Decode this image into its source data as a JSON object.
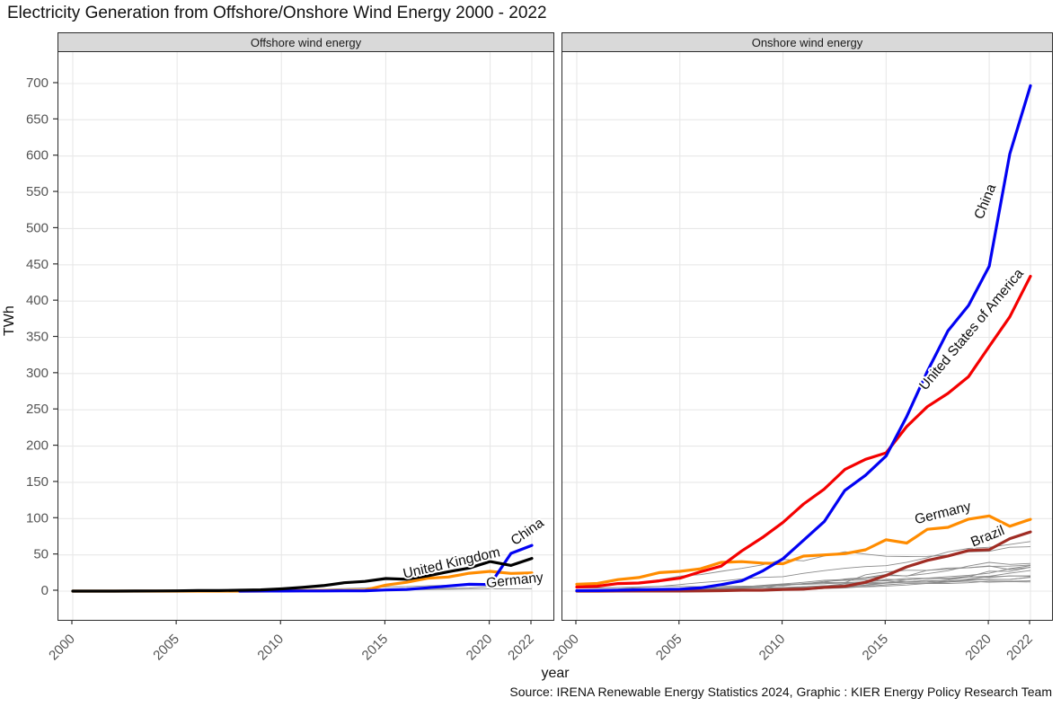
{
  "title": "Electricity Generation from Offshore/Onshore Wind Energy 2000 - 2022",
  "source": "Source: IRENA Renewable Energy Statistics 2024, Graphic : KIER Energy Policy Research Team",
  "axes": {
    "y_label": "TWh",
    "x_label": "year",
    "ylim": [
      0,
      700
    ],
    "y_ticks": [
      0,
      50,
      100,
      150,
      200,
      250,
      300,
      350,
      400,
      450,
      500,
      550,
      600,
      650,
      700
    ],
    "x_ticks": [
      2000,
      2005,
      2010,
      2015,
      2020,
      2022
    ],
    "years": [
      2000,
      2001,
      2002,
      2003,
      2004,
      2005,
      2006,
      2007,
      2008,
      2009,
      2010,
      2011,
      2012,
      2013,
      2014,
      2015,
      2016,
      2017,
      2018,
      2019,
      2020,
      2021,
      2022
    ]
  },
  "colors": {
    "china": "#0202f2",
    "united_states": "#f40000",
    "germany": "#ff8c00",
    "united_kingdom": "#000000",
    "brazil": "#a02c24",
    "other_countries": "#8a8a8a",
    "grid": "#e8e8e8",
    "strip_bg": "#d9d9d9",
    "axis_text": "#555555"
  },
  "chart_data": [
    {
      "type": "line",
      "title": "Offshore wind energy",
      "series": [
        {
          "name": "Germany",
          "color": "#ff8c00",
          "values": [
            0,
            0,
            0,
            0,
            0,
            0,
            0,
            0,
            0,
            0.05,
            0.2,
            0.6,
            0.7,
            0.9,
            1.4,
            8.3,
            12.1,
            17.7,
            19.5,
            24.7,
            27.3,
            24.4,
            25.1
          ]
        },
        {
          "name": "China",
          "color": "#0202f2",
          "values": [
            null,
            null,
            null,
            null,
            null,
            null,
            null,
            null,
            0,
            0.1,
            0.1,
            0.2,
            0.3,
            0.4,
            0.5,
            1.6,
            2.4,
            4.6,
            7.1,
            9.4,
            9,
            52,
            63
          ]
        },
        {
          "name": "United Kingdom",
          "color": "#000000",
          "values": [
            0,
            0,
            0,
            0.1,
            0.2,
            0.4,
            0.7,
            0.8,
            1.3,
            1.7,
            3.1,
            5.1,
            7.6,
            11.5,
            13.4,
            17.4,
            16.4,
            20.9,
            26.7,
            31.9,
            40.7,
            35.4,
            45.1
          ]
        }
      ],
      "others": [
        [
          0,
          0,
          0,
          0.3,
          0.6,
          0.7,
          0.8,
          0.8,
          0.9,
          0.9,
          1.4,
          1.8,
          2.3,
          3.5,
          4.4,
          5.8,
          6.2,
          7.3,
          7.9,
          8.4,
          8.9,
          9.3,
          9.9
        ],
        [
          0,
          0,
          0,
          0,
          0,
          0,
          0.2,
          0.4,
          0.5,
          0.5,
          0.5,
          0.6,
          0.8,
          0.8,
          0.8,
          0.9,
          1.6,
          3.5,
          3.7,
          4.2,
          6.5,
          8.2,
          12.1
        ],
        [
          0,
          0,
          0,
          0,
          0,
          0,
          0,
          0,
          0,
          0.2,
          0.4,
          0.6,
          0.9,
          1.1,
          1.4,
          1.6,
          1.8,
          2.1,
          2.4,
          2.7,
          3,
          3.2,
          3.4
        ]
      ],
      "labels": [
        {
          "text": "United Kingdom",
          "year": 2018.2,
          "value": 33,
          "rot": -13
        },
        {
          "text": "China",
          "year": 2021.9,
          "value": 77,
          "rot": -35
        },
        {
          "text": "Germany",
          "year": 2021.2,
          "value": 9,
          "rot": -6
        }
      ]
    },
    {
      "type": "line",
      "title": "Onshore wind energy",
      "series": [
        {
          "name": "Germany",
          "color": "#ff8c00",
          "values": [
            9.4,
            10.5,
            15.9,
            18.7,
            25.5,
            27.2,
            30.7,
            39.7,
            40.6,
            38.6,
            37.8,
            48.3,
            49.9,
            51.7,
            57,
            70.9,
            66.3,
            85.3,
            88,
            99.2,
            103.7,
            89.5,
            99
          ]
        },
        {
          "name": "Brazil",
          "color": "#a02c24",
          "values": [
            0,
            0,
            0.1,
            0.1,
            0.1,
            0.1,
            0.2,
            0.6,
            1.2,
            1.2,
            2.2,
            2.7,
            5.1,
            6.6,
            12.2,
            21.6,
            33.5,
            42.4,
            48.5,
            56,
            57.1,
            72.3,
            81.6
          ]
        },
        {
          "name": "United States of America",
          "color": "#f40000",
          "values": [
            5.6,
            6.7,
            10.4,
            11.2,
            14.1,
            17.8,
            26.6,
            34.5,
            55.4,
            73.9,
            94.7,
            120.2,
            140.8,
            167.8,
            181.7,
            190.7,
            227,
            254.3,
            272.7,
            295.9,
            337.5,
            378.2,
            434.3
          ]
        },
        {
          "name": "China",
          "color": "#0202f2",
          "values": [
            0.6,
            0.8,
            1.2,
            1.9,
            2.3,
            2.7,
            4.4,
            8.9,
            14.1,
            27.6,
            44.6,
            70.3,
            95.9,
            138.9,
            159.7,
            186.3,
            240.9,
            303,
            359,
            394,
            448,
            603,
            697
          ]
        }
      ],
      "others": [
        [
          1.7,
          2.1,
          2.9,
          5,
          6.5,
          9,
          11.7,
          13.9,
          16.9,
          18.9,
          19.9,
          24.5,
          28.2,
          31.5,
          33.8,
          35.1,
          39.8,
          46.1,
          54.2,
          58.9,
          60.4,
          64.3,
          68.4
        ],
        [
          4.7,
          6.9,
          9.3,
          11.9,
          15.5,
          20.7,
          22.7,
          27.2,
          31.4,
          36.2,
          43.7,
          41.8,
          48.5,
          54.3,
          51.1,
          48.1,
          47.7,
          47.9,
          49.6,
          54.2,
          54.9,
          60.5,
          61.2
        ],
        [
          0.9,
          1,
          1.3,
          1.3,
          1.7,
          2.8,
          4.2,
          4.9,
          5.8,
          7.6,
          7.2,
          10.5,
          12.2,
          16.9,
          18.6,
          22.9,
          20.7,
          28.7,
          30.2,
          32.3,
          34.7,
          29.7,
          32.8
        ],
        [
          0.1,
          0.1,
          0.3,
          0.4,
          0.6,
          1,
          2.2,
          4,
          5.7,
          7.9,
          9.9,
          12.1,
          14.9,
          16,
          17.2,
          21.4,
          20.9,
          24,
          28.1,
          34.6,
          39.7,
          36.8,
          38.1
        ],
        [
          0.3,
          0.4,
          0.5,
          0.8,
          1.4,
          1.6,
          2.5,
          3,
          3.8,
          4.5,
          8.7,
          10.2,
          11.8,
          11.6,
          22.5,
          26.5,
          28.8,
          28.6,
          31.8,
          32.2,
          34.2,
          34.5,
          35.9
        ],
        [
          0.5,
          0.5,
          0.6,
          0.7,
          0.9,
          0.9,
          1,
          1.4,
          2,
          2.5,
          3.5,
          6.1,
          7.2,
          9.9,
          11.5,
          16.3,
          15.5,
          17.6,
          16.6,
          19.8,
          27.5,
          27.1,
          33
        ],
        [
          0,
          0.1,
          0.1,
          0.1,
          0.1,
          0.1,
          0.1,
          0.4,
          0.8,
          1.5,
          2.9,
          4.7,
          5.9,
          7.6,
          8.5,
          11.7,
          15.5,
          17.9,
          19.9,
          21.7,
          24.7,
          31,
          35.1
        ],
        [
          0.2,
          0.4,
          0.6,
          0.9,
          1.2,
          1.7,
          2.2,
          2.6,
          3.9,
          5,
          5.1,
          6.1,
          7.3,
          8.3,
          10.3,
          11.5,
          12.6,
          12.8,
          15.2,
          19.5,
          20.4,
          24.6,
          28.5
        ],
        [
          0.6,
          1.2,
          1.4,
          1.5,
          1.8,
          2.3,
          3,
          4,
          4.9,
          6.5,
          9.1,
          9.9,
          13.4,
          14.9,
          15.2,
          14.8,
          17.7,
          17.7,
          17.7,
          20.2,
          18.7,
          20.9,
          20.4
        ],
        [
          0,
          0,
          0,
          0,
          0,
          0,
          0,
          0.2,
          0.3,
          0.6,
          1.2,
          1.6,
          3.6,
          4.2,
          6.4,
          8.7,
          10.4,
          10.6,
          12.4,
          16.7,
          19.7,
          20.8,
          21.1
        ],
        [
          0.8,
          0.8,
          0.9,
          1.3,
          1.9,
          2,
          2.7,
          3.4,
          4.3,
          4.6,
          4,
          5.1,
          5,
          5.6,
          5.8,
          6.9,
          8.4,
          10.6,
          10.5,
          11.5,
          13.9,
          13.7,
          14.2
        ],
        [
          0,
          0,
          0.1,
          0.1,
          0.1,
          0.1,
          0.3,
          0.5,
          0.8,
          1.1,
          1.7,
          3.2,
          4.7,
          6,
          7.7,
          10.9,
          12.6,
          14.9,
          12.8,
          15.1,
          15.8,
          16.2,
          19
        ],
        [
          4.2,
          4.3,
          4.9,
          5.6,
          6.6,
          6.6,
          6.1,
          7.2,
          6.9,
          6.7,
          7.8,
          9.8,
          10.3,
          11.1,
          13.1,
          14.1,
          12.8,
          14.8,
          13.9,
          16,
          16.3,
          16,
          19.3
        ],
        [
          0.2,
          0.3,
          0.3,
          0.5,
          0.8,
          1.7,
          2.9,
          4,
          5.7,
          7.5,
          9.1,
          9.2,
          10.1,
          12,
          12.1,
          11.3,
          12.2,
          12.2,
          12.6,
          13.7,
          12.3,
          13.1,
          12.6
        ]
      ],
      "labels": [
        {
          "text": "China",
          "year": 2020.0,
          "value": 535,
          "rot": -68
        },
        {
          "text": "United States of America",
          "year": 2019.3,
          "value": 357,
          "rot": -50
        },
        {
          "text": "Germany",
          "year": 2017.8,
          "value": 102,
          "rot": -14
        },
        {
          "text": "Brazil",
          "year": 2020.0,
          "value": 70,
          "rot": -22
        }
      ]
    }
  ]
}
